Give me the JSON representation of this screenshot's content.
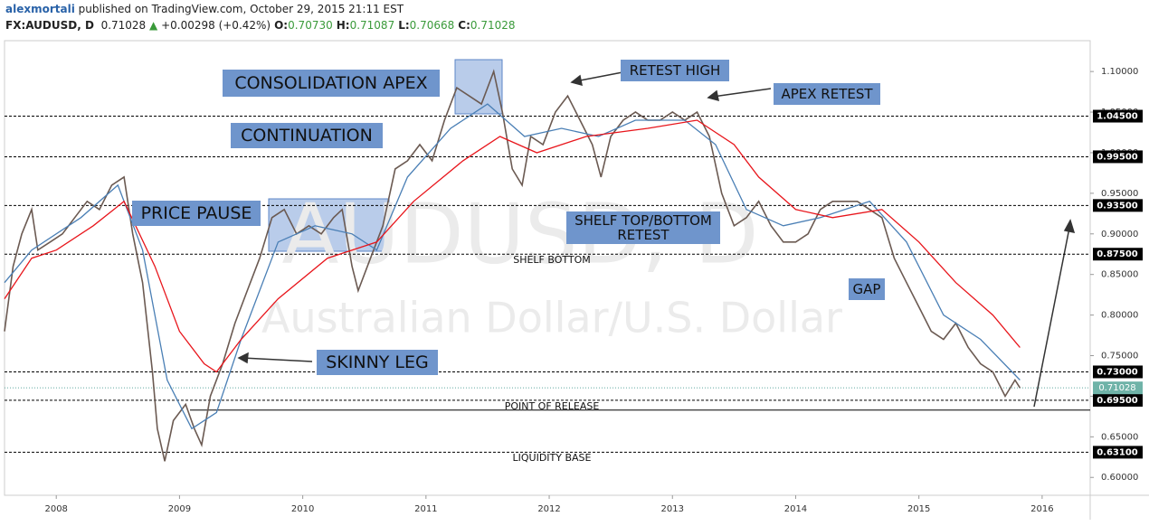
{
  "header": {
    "author": "alexmortali",
    "published": "published on TradingView.com, October 29, 2015 21:11 EST",
    "symbol": "FX:AUDUSD, D",
    "last": "0.71028",
    "change": "+0.00298 (+0.42%)",
    "ohlc": [
      {
        "key": "O:",
        "value": "0.70730"
      },
      {
        "key": "H:",
        "value": "0.71087"
      },
      {
        "key": "L:",
        "value": "0.70668"
      },
      {
        "key": "C:",
        "value": "0.71028"
      }
    ]
  },
  "chart_data": {
    "type": "line",
    "watermark": [
      "AUDUSD, D",
      "Australian Dollar/U.S. Dollar"
    ],
    "xlim": [
      2007.58,
      2016.39
    ],
    "xticks": [
      2008,
      2009,
      2010,
      2011,
      2012,
      2013,
      2014,
      2015,
      2016
    ],
    "ylim": [
      0.578,
      1.138
    ],
    "yticks": [
      {
        "value": 0.6,
        "label": "0.60000"
      },
      {
        "value": 0.65,
        "label": "0.65000"
      },
      {
        "value": 0.7,
        "label": "0.70000"
      },
      {
        "value": 0.75,
        "label": "0.75000"
      },
      {
        "value": 0.8,
        "label": "0.80000"
      },
      {
        "value": 0.85,
        "label": "0.85000"
      },
      {
        "value": 0.9,
        "label": "0.90000"
      },
      {
        "value": 0.95,
        "label": "0.95000"
      },
      {
        "value": 1.0,
        "label": "1.00000"
      },
      {
        "value": 1.05,
        "label": "1.05000"
      },
      {
        "value": 1.1,
        "label": "1.10000"
      }
    ],
    "series": [
      {
        "name": "AUDUSD",
        "color": "#6b5a52",
        "x": [
          2007.58,
          2007.65,
          2007.72,
          2007.8,
          2007.85,
          2007.95,
          2008.05,
          2008.15,
          2008.25,
          2008.35,
          2008.45,
          2008.55,
          2008.62,
          2008.7,
          2008.78,
          2008.82,
          2008.88,
          2008.95,
          2009.05,
          2009.12,
          2009.18,
          2009.25,
          2009.35,
          2009.45,
          2009.55,
          2009.65,
          2009.75,
          2009.85,
          2009.95,
          2010.05,
          2010.15,
          2010.25,
          2010.32,
          2010.4,
          2010.45,
          2010.55,
          2010.65,
          2010.75,
          2010.85,
          2010.95,
          2011.05,
          2011.15,
          2011.25,
          2011.35,
          2011.45,
          2011.55,
          2011.62,
          2011.7,
          2011.78,
          2011.85,
          2011.95,
          2012.05,
          2012.15,
          2012.25,
          2012.35,
          2012.42,
          2012.5,
          2012.6,
          2012.7,
          2012.8,
          2012.9,
          2013.0,
          2013.1,
          2013.2,
          2013.3,
          2013.4,
          2013.5,
          2013.6,
          2013.7,
          2013.8,
          2013.9,
          2014.0,
          2014.1,
          2014.2,
          2014.3,
          2014.4,
          2014.5,
          2014.6,
          2014.7,
          2014.8,
          2014.9,
          2015.0,
          2015.1,
          2015.2,
          2015.3,
          2015.4,
          2015.5,
          2015.6,
          2015.7,
          2015.78,
          2015.82
        ],
        "values": [
          0.78,
          0.86,
          0.9,
          0.93,
          0.88,
          0.89,
          0.9,
          0.92,
          0.94,
          0.93,
          0.96,
          0.97,
          0.9,
          0.84,
          0.73,
          0.66,
          0.62,
          0.67,
          0.69,
          0.66,
          0.64,
          0.7,
          0.74,
          0.79,
          0.83,
          0.87,
          0.92,
          0.93,
          0.9,
          0.91,
          0.9,
          0.92,
          0.93,
          0.86,
          0.83,
          0.87,
          0.91,
          0.98,
          0.99,
          1.01,
          0.99,
          1.04,
          1.08,
          1.07,
          1.06,
          1.1,
          1.05,
          0.98,
          0.96,
          1.02,
          1.01,
          1.05,
          1.07,
          1.04,
          1.01,
          0.97,
          1.02,
          1.04,
          1.05,
          1.04,
          1.04,
          1.05,
          1.04,
          1.05,
          1.02,
          0.95,
          0.91,
          0.92,
          0.94,
          0.91,
          0.89,
          0.89,
          0.9,
          0.93,
          0.94,
          0.94,
          0.94,
          0.93,
          0.92,
          0.87,
          0.84,
          0.81,
          0.78,
          0.77,
          0.79,
          0.76,
          0.74,
          0.73,
          0.7,
          0.72,
          0.71028
        ]
      },
      {
        "name": "MA fast",
        "color": "#4a7fb5",
        "x": [
          2007.58,
          2007.8,
          2008.2,
          2008.5,
          2008.7,
          2008.9,
          2009.1,
          2009.3,
          2009.5,
          2009.8,
          2010.1,
          2010.4,
          2010.6,
          2010.85,
          2011.2,
          2011.5,
          2011.8,
          2012.1,
          2012.4,
          2012.7,
          2013.1,
          2013.35,
          2013.6,
          2013.9,
          2014.2,
          2014.6,
          2014.9,
          2015.2,
          2015.5,
          2015.82
        ],
        "values": [
          0.84,
          0.88,
          0.92,
          0.96,
          0.88,
          0.72,
          0.66,
          0.68,
          0.77,
          0.89,
          0.91,
          0.9,
          0.88,
          0.97,
          1.03,
          1.06,
          1.02,
          1.03,
          1.02,
          1.04,
          1.04,
          1.01,
          0.93,
          0.91,
          0.92,
          0.94,
          0.89,
          0.8,
          0.77,
          0.72
        ]
      },
      {
        "name": "MA slow",
        "color": "#e8151b",
        "x": [
          2007.58,
          2007.8,
          2008.0,
          2008.3,
          2008.55,
          2008.8,
          2009.0,
          2009.2,
          2009.3,
          2009.5,
          2009.8,
          2010.2,
          2010.6,
          2010.9,
          2011.3,
          2011.6,
          2011.9,
          2012.3,
          2012.8,
          2013.2,
          2013.5,
          2013.7,
          2014.0,
          2014.3,
          2014.7,
          2015.0,
          2015.3,
          2015.6,
          2015.82
        ],
        "values": [
          0.82,
          0.87,
          0.88,
          0.91,
          0.94,
          0.86,
          0.78,
          0.74,
          0.73,
          0.77,
          0.82,
          0.87,
          0.89,
          0.94,
          0.99,
          1.02,
          1.0,
          1.02,
          1.03,
          1.04,
          1.01,
          0.97,
          0.93,
          0.92,
          0.93,
          0.89,
          0.84,
          0.8,
          0.76
        ]
      }
    ],
    "levels": [
      {
        "value": 1.045,
        "label": "1.04500"
      },
      {
        "value": 0.995,
        "label": "0.99500"
      },
      {
        "value": 0.935,
        "label": "0.93500"
      },
      {
        "value": 0.875,
        "label": "0.87500"
      },
      {
        "value": 0.73,
        "label": "0.73000"
      },
      {
        "value": 0.695,
        "label": "0.69500"
      },
      {
        "value": 0.631,
        "label": "0.63100"
      }
    ],
    "last_price": {
      "value": 0.71028,
      "label": "0.71028"
    },
    "release_line": 0.683,
    "annotations": [
      "CONSOLIDATION APEX",
      "CONTINUATION",
      "PRICE PAUSE",
      "SKINNY LEG",
      "RETEST HIGH",
      "APEX RETEST",
      "SHELF TOP/BOTTOM RETEST",
      "GAP",
      "SHELF BOTTOM",
      "POINT OF RELEASE",
      "LIQUIDITY BASE"
    ]
  }
}
